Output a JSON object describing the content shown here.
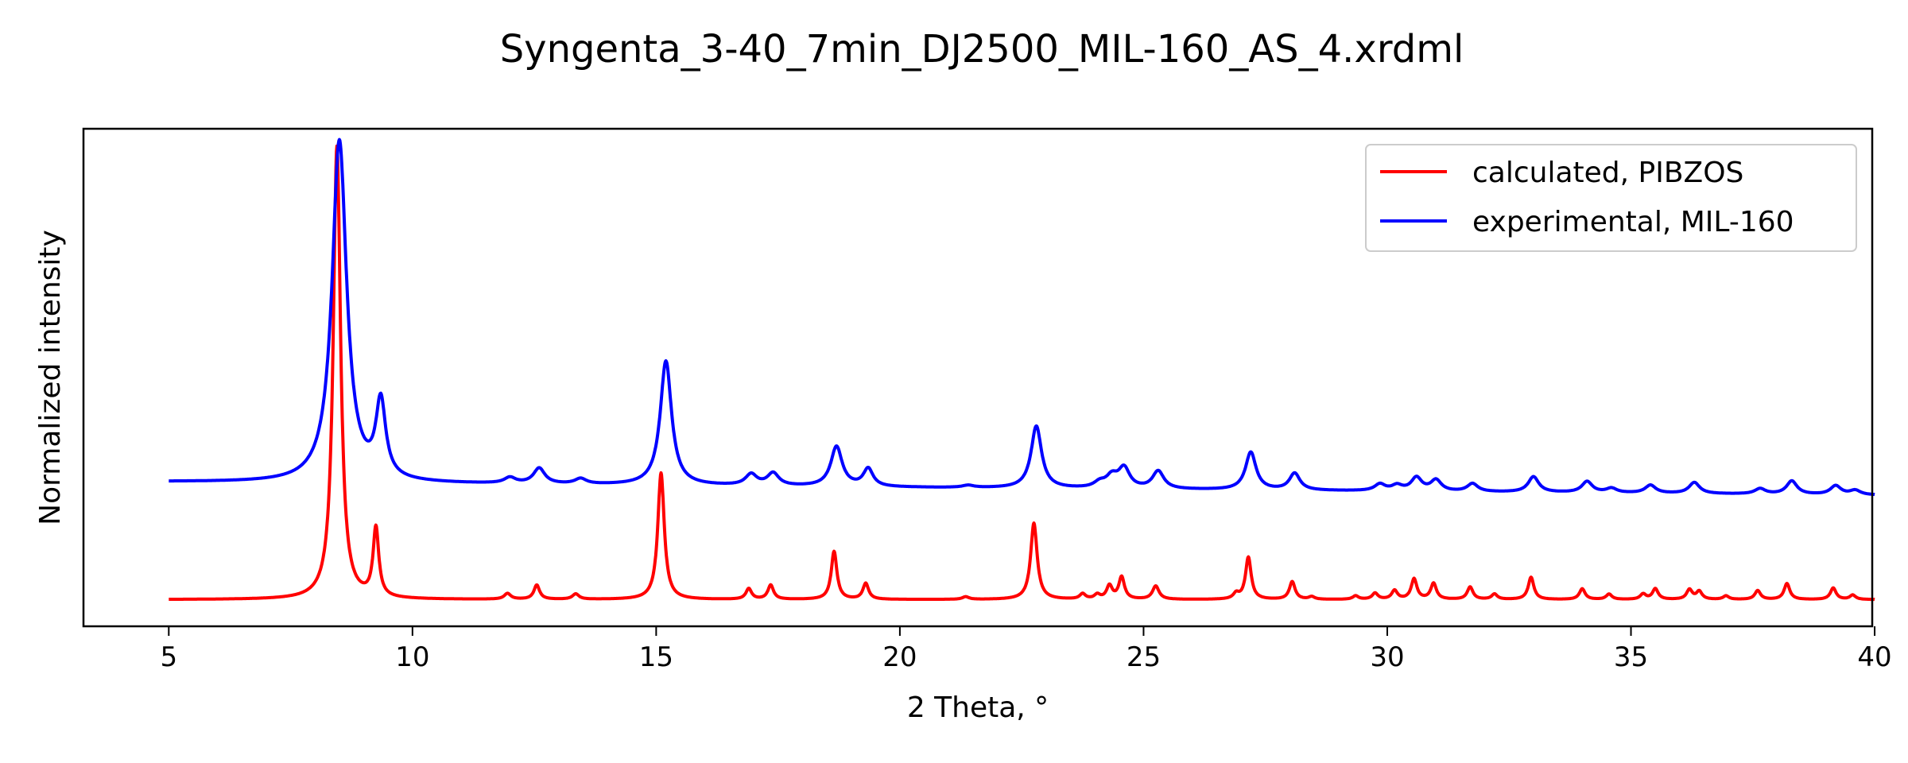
{
  "chart_data": {
    "type": "line",
    "title": "Syngenta_3-40_7min_DJ2500_MIL-160_AS_4.xrdml",
    "xlabel": "2 Theta, °",
    "ylabel": "Normalized intensity",
    "xlim": [
      3.25,
      39.95
    ],
    "ylim": [
      -0.06,
      1.06
    ],
    "xticks": [
      {
        "value": 5,
        "label": "5"
      },
      {
        "value": 10,
        "label": "10"
      },
      {
        "value": 15,
        "label": "15"
      },
      {
        "value": 20,
        "label": "20"
      },
      {
        "value": 25,
        "label": "25"
      },
      {
        "value": 30,
        "label": "30"
      },
      {
        "value": 35,
        "label": "35"
      },
      {
        "value": 40,
        "label": "40"
      }
    ],
    "yticks_visible": false,
    "grid": false,
    "legend_position": "top-right",
    "series": [
      {
        "name": "calculated, PIBZOS",
        "color": "#ff0000",
        "baseline": 0.0,
        "peaks": [
          [
            8.45,
            1.02,
            0.09
          ],
          [
            9.25,
            0.155,
            0.07
          ],
          [
            11.95,
            0.013,
            0.08
          ],
          [
            12.55,
            0.032,
            0.07
          ],
          [
            13.35,
            0.012,
            0.08
          ],
          [
            15.1,
            0.285,
            0.08
          ],
          [
            16.9,
            0.024,
            0.07
          ],
          [
            17.35,
            0.032,
            0.07
          ],
          [
            18.65,
            0.108,
            0.07
          ],
          [
            19.3,
            0.036,
            0.07
          ],
          [
            21.35,
            0.006,
            0.08
          ],
          [
            22.75,
            0.172,
            0.08
          ],
          [
            23.75,
            0.012,
            0.07
          ],
          [
            24.05,
            0.01,
            0.07
          ],
          [
            24.3,
            0.03,
            0.07
          ],
          [
            24.55,
            0.05,
            0.07
          ],
          [
            25.25,
            0.03,
            0.08
          ],
          [
            26.9,
            0.012,
            0.07
          ],
          [
            27.15,
            0.095,
            0.07
          ],
          [
            28.05,
            0.04,
            0.07
          ],
          [
            28.45,
            0.006,
            0.07
          ],
          [
            29.35,
            0.008,
            0.07
          ],
          [
            29.75,
            0.014,
            0.07
          ],
          [
            30.15,
            0.02,
            0.07
          ],
          [
            30.55,
            0.046,
            0.07
          ],
          [
            30.95,
            0.036,
            0.07
          ],
          [
            31.7,
            0.028,
            0.07
          ],
          [
            32.2,
            0.012,
            0.07
          ],
          [
            32.95,
            0.05,
            0.07
          ],
          [
            34.0,
            0.024,
            0.07
          ],
          [
            34.55,
            0.012,
            0.07
          ],
          [
            35.25,
            0.012,
            0.07
          ],
          [
            35.5,
            0.024,
            0.07
          ],
          [
            36.2,
            0.022,
            0.07
          ],
          [
            36.4,
            0.018,
            0.07
          ],
          [
            36.95,
            0.008,
            0.07
          ],
          [
            37.6,
            0.02,
            0.07
          ],
          [
            38.2,
            0.036,
            0.07
          ],
          [
            39.15,
            0.026,
            0.07
          ],
          [
            39.55,
            0.01,
            0.07
          ]
        ]
      },
      {
        "name": "experimental, MIL-160",
        "color": "#0000ff",
        "baseline": 0.265,
        "baseline_end": 0.235,
        "peaks": [
          [
            8.5,
            0.77,
            0.18
          ],
          [
            9.35,
            0.17,
            0.12
          ],
          [
            12.0,
            0.013,
            0.14
          ],
          [
            12.6,
            0.035,
            0.14
          ],
          [
            13.45,
            0.012,
            0.14
          ],
          [
            15.2,
            0.28,
            0.14
          ],
          [
            16.95,
            0.025,
            0.14
          ],
          [
            17.4,
            0.028,
            0.14
          ],
          [
            18.7,
            0.09,
            0.14
          ],
          [
            19.35,
            0.04,
            0.12
          ],
          [
            21.4,
            0.005,
            0.14
          ],
          [
            22.8,
            0.14,
            0.13
          ],
          [
            24.1,
            0.012,
            0.14
          ],
          [
            24.35,
            0.025,
            0.14
          ],
          [
            24.6,
            0.045,
            0.14
          ],
          [
            25.3,
            0.04,
            0.14
          ],
          [
            27.2,
            0.085,
            0.13
          ],
          [
            28.1,
            0.038,
            0.13
          ],
          [
            29.85,
            0.015,
            0.13
          ],
          [
            30.2,
            0.012,
            0.13
          ],
          [
            30.6,
            0.03,
            0.13
          ],
          [
            31.0,
            0.025,
            0.13
          ],
          [
            31.75,
            0.018,
            0.13
          ],
          [
            33.0,
            0.035,
            0.13
          ],
          [
            34.1,
            0.025,
            0.13
          ],
          [
            34.6,
            0.01,
            0.13
          ],
          [
            35.4,
            0.018,
            0.13
          ],
          [
            36.3,
            0.025,
            0.13
          ],
          [
            37.65,
            0.012,
            0.13
          ],
          [
            38.3,
            0.03,
            0.13
          ],
          [
            39.2,
            0.02,
            0.13
          ],
          [
            39.6,
            0.01,
            0.13
          ]
        ]
      }
    ]
  }
}
